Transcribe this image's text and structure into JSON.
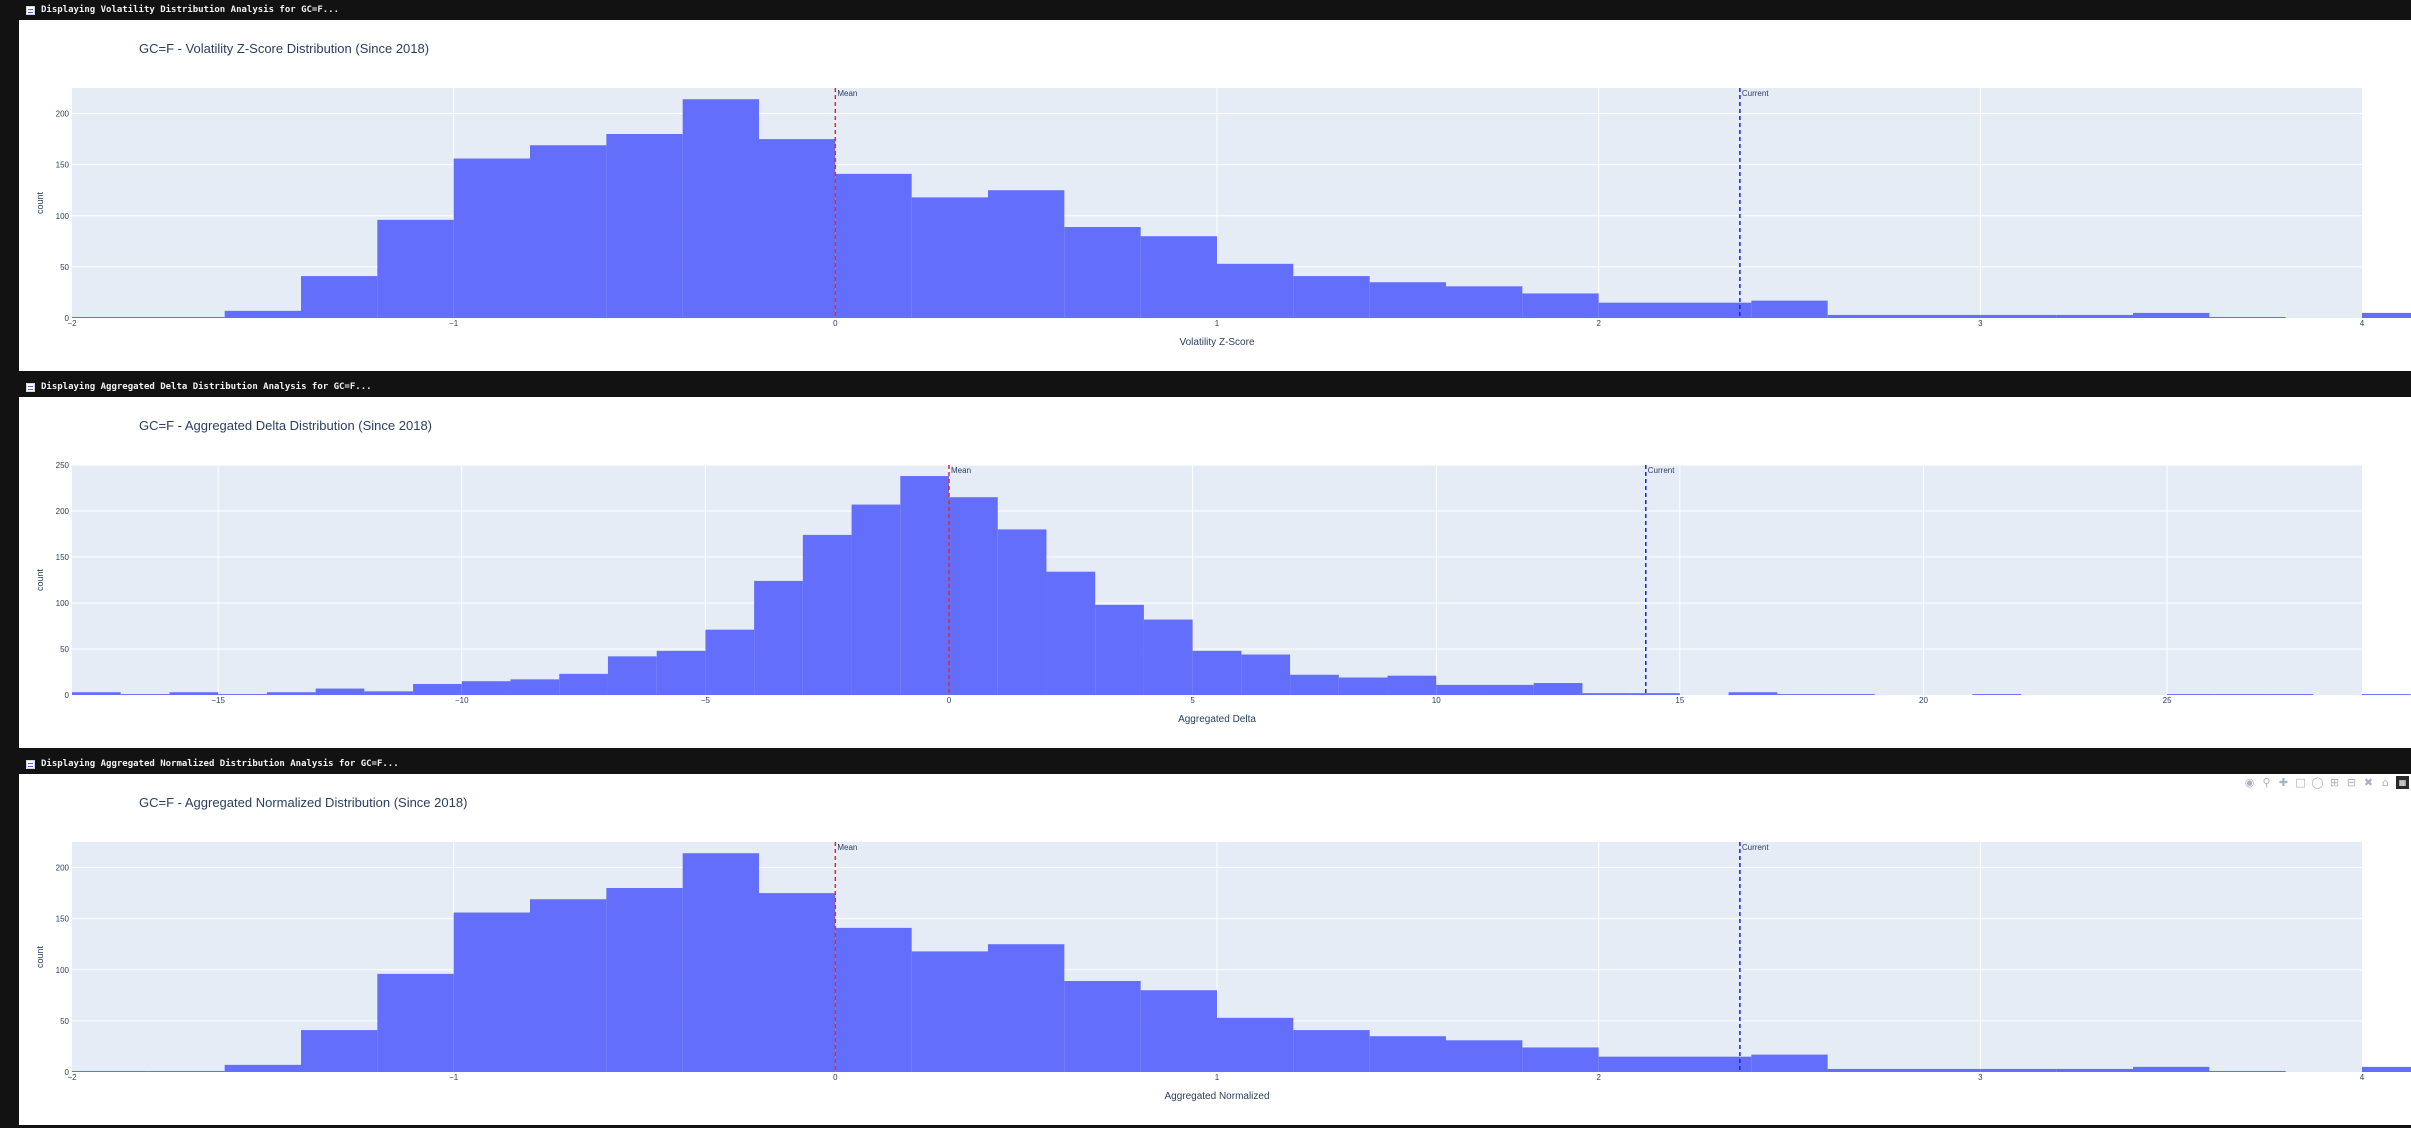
{
  "sections": [
    {
      "header": "Displaying Volatility Distribution Analysis for GC=F...",
      "title": "GC=F - Volatility Z-Score Distribution (Since 2018)",
      "chart_data": {
        "type": "bar",
        "x_range": [
          -2,
          4
        ],
        "bins_start": -2,
        "bin_width": 0.2,
        "values": [
          1,
          1,
          7,
          41,
          96,
          156,
          169,
          180,
          214,
          175,
          141,
          118,
          125,
          89,
          80,
          53,
          41,
          35,
          31,
          24,
          15,
          15,
          17,
          3,
          3,
          3,
          3,
          5,
          1,
          0,
          5
        ],
        "ylim": [
          0,
          225
        ],
        "y_ticks": [
          0,
          50,
          100,
          150,
          200
        ],
        "x_ticks": [
          -2,
          -1,
          0,
          1,
          2,
          3,
          4
        ],
        "x_tick_labels": [
          "−2",
          "−1",
          "0",
          "1",
          "2",
          "3",
          "4"
        ],
        "xlabel": "Volatility Z-Score",
        "ylabel": "count",
        "mean": 0.0,
        "current": 2.37,
        "mean_label": "Mean",
        "current_label": "Current"
      },
      "show_modebar": false
    },
    {
      "header": "Displaying Aggregated Delta Distribution Analysis for GC=F...",
      "title": "GC=F - Aggregated Delta Distribution (Since 2018)",
      "chart_data": {
        "type": "bar",
        "x_range": [
          -18,
          29
        ],
        "bins_start": -18,
        "bin_width": 1,
        "values": [
          3,
          1,
          3,
          1,
          3,
          7,
          4,
          12,
          15,
          17,
          23,
          42,
          48,
          71,
          124,
          174,
          207,
          238,
          215,
          180,
          134,
          98,
          82,
          48,
          44,
          22,
          19,
          21,
          11,
          11,
          13,
          2,
          2,
          0,
          3,
          1,
          1,
          0,
          0,
          1,
          0,
          0,
          0,
          1,
          1,
          1,
          0,
          1
        ],
        "ylim": [
          0,
          250
        ],
        "y_ticks": [
          0,
          50,
          100,
          150,
          200,
          250
        ],
        "x_ticks": [
          -15,
          -10,
          -5,
          0,
          5,
          10,
          15,
          20,
          25
        ],
        "x_tick_labels": [
          "−15",
          "−10",
          "−5",
          "0",
          "5",
          "10",
          "15",
          "20",
          "25"
        ],
        "xlabel": "Aggregated Delta",
        "ylabel": "count",
        "mean": 0.0,
        "current": 14.3,
        "mean_label": "Mean",
        "current_label": "Current"
      },
      "show_modebar": false
    },
    {
      "header": "Displaying Aggregated Normalized Distribution Analysis for GC=F...",
      "title": "GC=F - Aggregated Normalized Distribution (Since 2018)",
      "chart_data": {
        "type": "bar",
        "x_range": [
          -2,
          4
        ],
        "bins_start": -2,
        "bin_width": 0.2,
        "values": [
          1,
          1,
          7,
          41,
          96,
          156,
          169,
          180,
          214,
          175,
          141,
          118,
          125,
          89,
          80,
          53,
          41,
          35,
          31,
          24,
          15,
          15,
          17,
          3,
          3,
          3,
          3,
          5,
          1,
          0,
          5
        ],
        "ylim": [
          0,
          225
        ],
        "y_ticks": [
          0,
          50,
          100,
          150,
          200
        ],
        "x_ticks": [
          -2,
          -1,
          0,
          1,
          2,
          3,
          4
        ],
        "x_tick_labels": [
          "−2",
          "−1",
          "0",
          "1",
          "2",
          "3",
          "4"
        ],
        "xlabel": "Aggregated Normalized",
        "ylabel": "count",
        "mean": 0.0,
        "current": 2.37,
        "mean_label": "Mean",
        "current_label": "Current"
      },
      "show_modebar": true
    }
  ],
  "modebar": {
    "icons": [
      "camera-icon",
      "zoom-icon",
      "pan-icon",
      "box-select-icon",
      "lasso-icon",
      "zoom-in-icon",
      "zoom-out-icon",
      "autoscale-icon",
      "reset-axes-icon",
      "plotly-logo-icon"
    ]
  },
  "colors": {
    "bar": "#636efa",
    "plot_bg": "#e5ecf6",
    "grid": "#ffffff",
    "mean_line": "#e8262b",
    "current_line": "#1f1fd6",
    "text": "#2a3f5f",
    "page_bg": "#121212"
  }
}
